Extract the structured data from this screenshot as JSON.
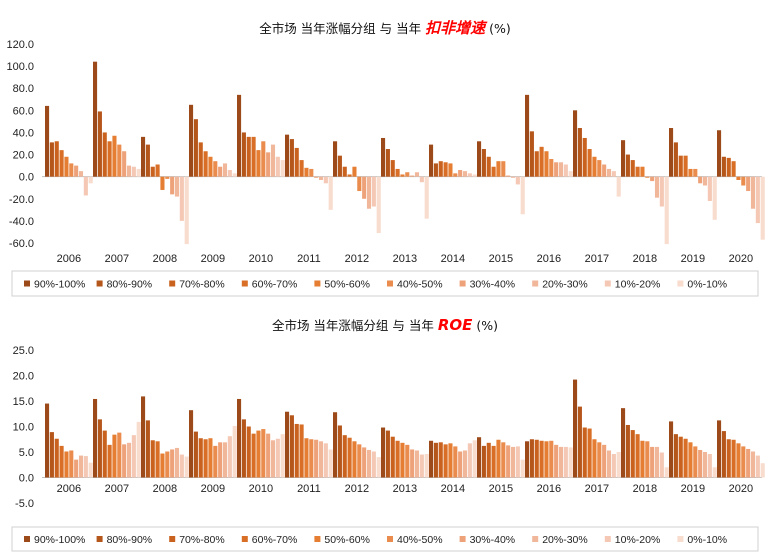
{
  "legend": [
    "90%-100%",
    "80%-90%",
    "70%-80%",
    "60%-70%",
    "50%-60%",
    "40%-50%",
    "30%-40%",
    "20%-30%",
    "10%-20%",
    "0%-10%"
  ],
  "colors": [
    "#9c4a1a",
    "#b5561b",
    "#c9621f",
    "#d96f26",
    "#e57d32",
    "#ea8c4e",
    "#eea27a",
    "#f1b79b",
    "#f4c8b4",
    "#f8dccd"
  ],
  "chart_data": [
    {
      "type": "bar",
      "title_prefix": "全市场  当年涨幅分组  与  当年",
      "title_highlight": "扣非增速",
      "title_suffix": "(%)",
      "categories": [
        "2006",
        "2007",
        "2008",
        "2009",
        "2010",
        "2011",
        "2012",
        "2013",
        "2014",
        "2015",
        "2016",
        "2017",
        "2018",
        "2019",
        "2020"
      ],
      "ylim": [
        -60,
        120
      ],
      "yticks": [
        "120.0",
        "100.0",
        "80.0",
        "60.0",
        "40.0",
        "20.0",
        "0.0",
        "-20.0",
        "-40.0",
        "-60.0"
      ],
      "ytick_values": [
        120,
        100,
        80,
        60,
        40,
        20,
        0,
        -20,
        -40,
        -60
      ],
      "series": [
        {
          "name": "90%-100%",
          "values": [
            64,
            104,
            36,
            65,
            74,
            38,
            32,
            35,
            29,
            32,
            74,
            60,
            33,
            44,
            42
          ]
        },
        {
          "name": "80%-90%",
          "values": [
            31,
            59,
            29,
            52,
            40,
            34,
            19,
            25,
            12,
            25,
            41,
            44,
            20,
            31,
            18
          ]
        },
        {
          "name": "70%-80%",
          "values": [
            32,
            40,
            9,
            31,
            36,
            26,
            9,
            15,
            14,
            18,
            23,
            35,
            15,
            19,
            17
          ]
        },
        {
          "name": "60%-70%",
          "values": [
            24,
            32,
            11,
            23,
            36,
            15,
            2,
            7,
            13,
            9,
            27,
            25,
            9,
            19,
            14
          ]
        },
        {
          "name": "50%-60%",
          "values": [
            18,
            37,
            -12,
            18,
            24,
            8,
            9,
            2,
            12,
            14,
            23,
            18,
            9,
            7,
            -3
          ]
        },
        {
          "name": "40%-50%",
          "values": [
            12,
            29,
            -2,
            14,
            32,
            7,
            -13,
            4,
            3,
            14,
            16,
            15,
            -1,
            7,
            -8
          ]
        },
        {
          "name": "30%-40%",
          "values": [
            10,
            23,
            -16,
            9,
            22,
            -1,
            -20,
            1,
            6,
            1,
            13,
            11,
            -4,
            -6,
            -13
          ]
        },
        {
          "name": "20%-30%",
          "values": [
            5,
            10,
            -18,
            12,
            29,
            -3,
            -29,
            4,
            5,
            -1,
            13,
            7,
            -19,
            -8,
            -29
          ]
        },
        {
          "name": "10%-20%",
          "values": [
            -17,
            9,
            -40,
            6,
            18,
            -6,
            -27,
            -5,
            3,
            -7,
            11,
            5,
            -27,
            -22,
            -42
          ]
        },
        {
          "name": "0%-10%",
          "values": [
            -6,
            7,
            -61,
            3,
            15,
            -30,
            -51,
            -38,
            2,
            -34,
            5,
            -18,
            -61,
            -39,
            -57
          ]
        }
      ]
    },
    {
      "type": "bar",
      "title_prefix": "全市场  当年涨幅分组  与  当年",
      "title_highlight": "ROE",
      "title_suffix": "(%)",
      "categories": [
        "2006",
        "2007",
        "2008",
        "2009",
        "2010",
        "2011",
        "2012",
        "2013",
        "2014",
        "2015",
        "2016",
        "2017",
        "2018",
        "2019",
        "2020"
      ],
      "ylim": [
        -5,
        25
      ],
      "yticks": [
        "25.0",
        "20.0",
        "15.0",
        "10.0",
        "5.0",
        "0.0",
        "-5.0"
      ],
      "ytick_values": [
        25,
        20,
        15,
        10,
        5,
        0,
        -5
      ],
      "series": [
        {
          "name": "90%-100%",
          "values": [
            14.5,
            15.4,
            15.9,
            13.2,
            15.4,
            12.9,
            12.8,
            9.8,
            7.2,
            7.9,
            7.1,
            19.2,
            13.6,
            11.0,
            11.2
          ]
        },
        {
          "name": "80%-90%",
          "values": [
            8.9,
            11.4,
            11.2,
            9.0,
            11.4,
            12.2,
            10.2,
            9.2,
            6.8,
            6.2,
            7.5,
            13.9,
            10.3,
            8.5,
            9.1
          ]
        },
        {
          "name": "70%-80%",
          "values": [
            7.6,
            9.2,
            7.3,
            7.7,
            10.0,
            10.5,
            8.3,
            8.0,
            6.9,
            6.8,
            7.4,
            9.8,
            9.3,
            8.0,
            7.5
          ]
        },
        {
          "name": "60%-70%",
          "values": [
            6.2,
            6.4,
            7.1,
            7.5,
            8.6,
            10.4,
            7.8,
            7.2,
            6.5,
            6.2,
            7.2,
            9.6,
            8.5,
            7.6,
            7.4
          ]
        },
        {
          "name": "50%-60%",
          "values": [
            5.1,
            8.4,
            4.7,
            7.7,
            9.2,
            7.7,
            7.1,
            6.8,
            6.7,
            7.4,
            7.1,
            7.5,
            7.2,
            6.9,
            6.7
          ]
        },
        {
          "name": "40%-50%",
          "values": [
            5.3,
            8.8,
            5.1,
            6.2,
            9.5,
            7.5,
            6.5,
            6.4,
            6.1,
            6.9,
            7.2,
            6.9,
            7.1,
            6.1,
            6.1
          ]
        },
        {
          "name": "30%-40%",
          "values": [
            3.5,
            6.5,
            5.5,
            6.9,
            8.6,
            7.4,
            5.9,
            5.5,
            5.1,
            6.3,
            6.4,
            6.4,
            6.0,
            5.4,
            5.6
          ]
        },
        {
          "name": "20%-30%",
          "values": [
            4.3,
            6.8,
            5.8,
            6.9,
            7.3,
            7.1,
            5.4,
            5.3,
            5.3,
            6.0,
            6.0,
            5.3,
            6.0,
            5.0,
            5.1
          ]
        },
        {
          "name": "10%-20%",
          "values": [
            4.2,
            8.3,
            4.5,
            8.1,
            7.6,
            6.7,
            5.1,
            4.5,
            6.7,
            6.1,
            6.0,
            4.6,
            4.9,
            4.6,
            4.3
          ]
        },
        {
          "name": "0%-10%",
          "values": [
            2.9,
            10.9,
            4.1,
            10.1,
            8.5,
            5.5,
            4.0,
            4.6,
            7.3,
            3.5,
            5.9,
            5.0,
            2.0,
            2.0,
            2.8
          ]
        }
      ]
    }
  ]
}
